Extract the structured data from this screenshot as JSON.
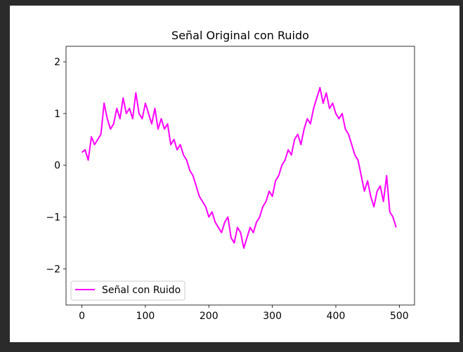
{
  "chart_data": {
    "type": "line",
    "title": "Señal Original con Ruido",
    "xlabel": "",
    "ylabel": "",
    "xlim": [
      -24.95,
      523.95
    ],
    "ylim": [
      -2.7,
      2.3
    ],
    "xticks": [
      0,
      100,
      200,
      300,
      400,
      500
    ],
    "yticks": [
      -2,
      -1,
      0,
      1,
      2
    ],
    "xtick_labels": [
      "0",
      "100",
      "200",
      "300",
      "400",
      "500"
    ],
    "ytick_labels": [
      "−2",
      "−1",
      "0",
      "1",
      "2"
    ],
    "grid": false,
    "legend_position": "lower-left",
    "series": [
      {
        "name": "Señal con Ruido",
        "color": "#ff00ff",
        "x_start": 0,
        "x_step": 5,
        "values": [
          0.25,
          0.3,
          0.1,
          0.55,
          0.4,
          0.5,
          0.6,
          1.2,
          0.9,
          0.7,
          0.8,
          1.1,
          0.9,
          1.3,
          1.0,
          1.1,
          0.9,
          1.4,
          1.0,
          0.9,
          1.2,
          1.0,
          0.8,
          1.1,
          0.7,
          0.9,
          0.7,
          0.8,
          0.4,
          0.5,
          0.3,
          0.4,
          0.2,
          0.1,
          -0.1,
          -0.2,
          -0.4,
          -0.6,
          -0.7,
          -0.8,
          -1.0,
          -0.9,
          -1.1,
          -1.2,
          -1.3,
          -1.1,
          -1.0,
          -1.4,
          -1.5,
          -1.2,
          -1.3,
          -1.6,
          -1.4,
          -1.2,
          -1.3,
          -1.1,
          -1.0,
          -0.8,
          -0.7,
          -0.5,
          -0.6,
          -0.3,
          -0.2,
          0.0,
          0.1,
          0.3,
          0.2,
          0.5,
          0.6,
          0.4,
          0.7,
          0.9,
          0.8,
          1.1,
          1.3,
          1.5,
          1.2,
          1.4,
          1.1,
          1.2,
          1.0,
          0.9,
          1.0,
          0.7,
          0.6,
          0.4,
          0.2,
          0.1,
          -0.2,
          -0.5,
          -0.3,
          -0.6,
          -0.8,
          -0.5,
          -0.4,
          -0.7,
          -0.2,
          -0.9,
          -1.0,
          -1.2
        ]
      }
    ]
  }
}
